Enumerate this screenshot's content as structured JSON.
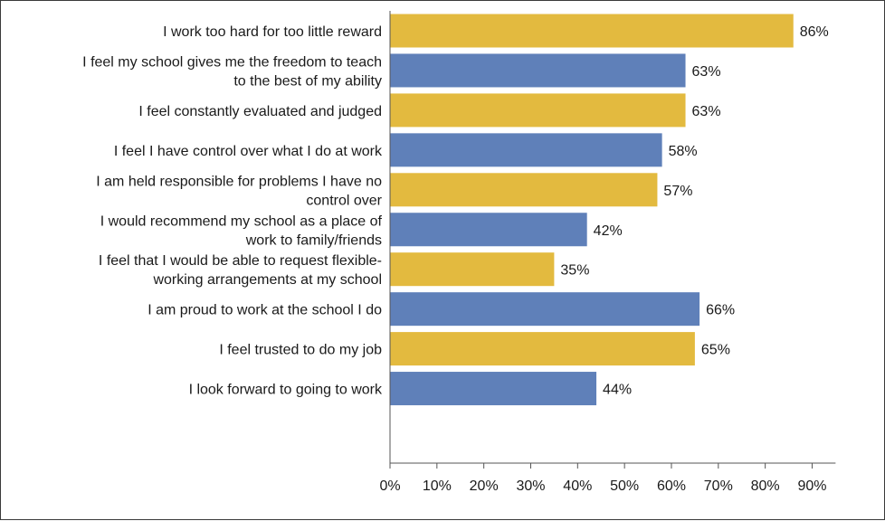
{
  "chart_data": {
    "type": "bar",
    "orientation": "horizontal",
    "categories": [
      [
        "I work too hard for too little reward"
      ],
      [
        "I feel my school gives me the freedom to teach",
        "to the best of my ability"
      ],
      [
        "I feel constantly evaluated and judged"
      ],
      [
        "I feel I have control over what I do at work"
      ],
      [
        "I am held responsible for problems I have no",
        "control over"
      ],
      [
        "I would recommend my school as a place of",
        "work to family/friends"
      ],
      [
        "I feel that I would be able to request flexible-",
        "working arrangements at my school"
      ],
      [
        "I am proud to work at the school I do"
      ],
      [
        "I feel trusted to do my job"
      ],
      [
        "I look forward to going to work"
      ]
    ],
    "values": [
      86,
      63,
      63,
      58,
      57,
      42,
      35,
      66,
      65,
      44
    ],
    "value_labels": [
      "86%",
      "63%",
      "63%",
      "58%",
      "57%",
      "42%",
      "35%",
      "66%",
      "65%",
      "44%"
    ],
    "bar_colors": [
      "#E3BA3F",
      "#5F80B9",
      "#E3BA3F",
      "#5F80B9",
      "#E3BA3F",
      "#5F80B9",
      "#E3BA3F",
      "#5F80B9",
      "#E3BA3F",
      "#5F80B9"
    ],
    "xlim": [
      0,
      95
    ],
    "xticks": [
      0,
      10,
      20,
      30,
      40,
      50,
      60,
      70,
      80,
      90
    ],
    "xtick_labels": [
      "0%",
      "10%",
      "20%",
      "30%",
      "40%",
      "50%",
      "60%",
      "70%",
      "80%",
      "90%"
    ],
    "title": "",
    "xlabel": "",
    "ylabel": "",
    "grid": false,
    "legend": null
  },
  "colors": {
    "gold": "#E3BA3F",
    "blue": "#5F80B9",
    "axis": "#555555"
  }
}
